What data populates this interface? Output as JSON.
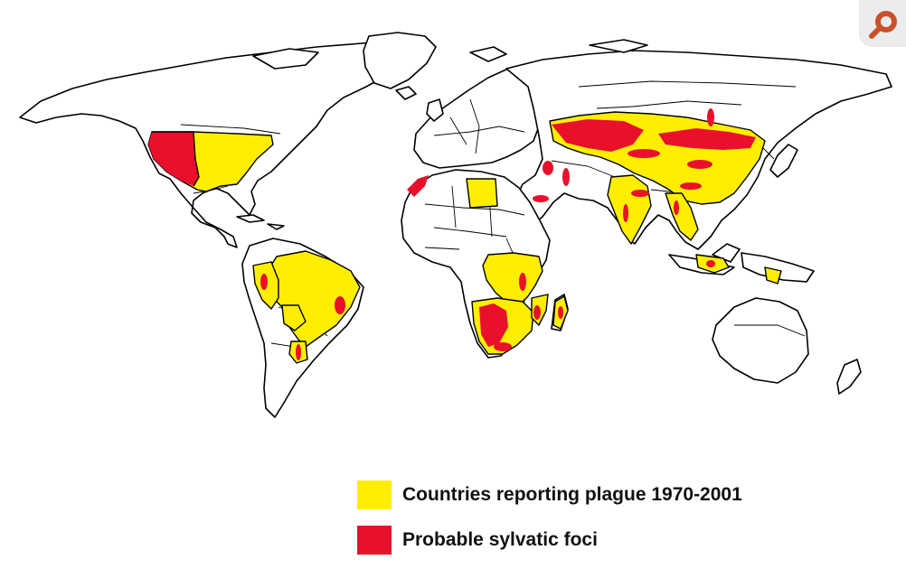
{
  "colors": {
    "plague_reported": "#ffee00",
    "sylvatic_foci": "#e8102a",
    "land": "#ffffff",
    "outline": "#000000",
    "badge_background": "#ececec",
    "badge_icon": "#c8512b"
  },
  "legend": {
    "items": [
      {
        "label": "Countries reporting plague 1970-2001",
        "swatch_color": "#ffee00"
      },
      {
        "label": "Probable sylvatic foci",
        "swatch_color": "#e8102a"
      }
    ]
  },
  "corner_badge": {
    "icon": "magnifier-icon"
  }
}
